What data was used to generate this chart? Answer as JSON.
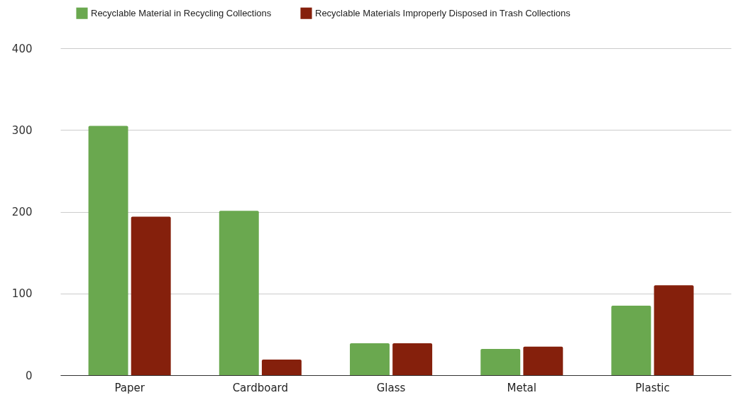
{
  "chart_data": {
    "type": "bar",
    "categories": [
      "Paper",
      "Cardboard",
      "Glass",
      "Metal",
      "Plastic"
    ],
    "series": [
      {
        "name": "Recyclable Material in Recycling Collections",
        "color": "#6aa84f",
        "values": [
          305,
          201,
          39,
          32,
          85
        ]
      },
      {
        "name": "Recyclable Materials Improperly Disposed in Trash Collections",
        "color": "#85200c",
        "values": [
          194,
          19,
          39,
          35,
          110
        ]
      }
    ],
    "ylim": [
      0,
      400
    ],
    "yticks": [
      0,
      100,
      200,
      300,
      400
    ],
    "grid": "y",
    "legend": "top"
  }
}
